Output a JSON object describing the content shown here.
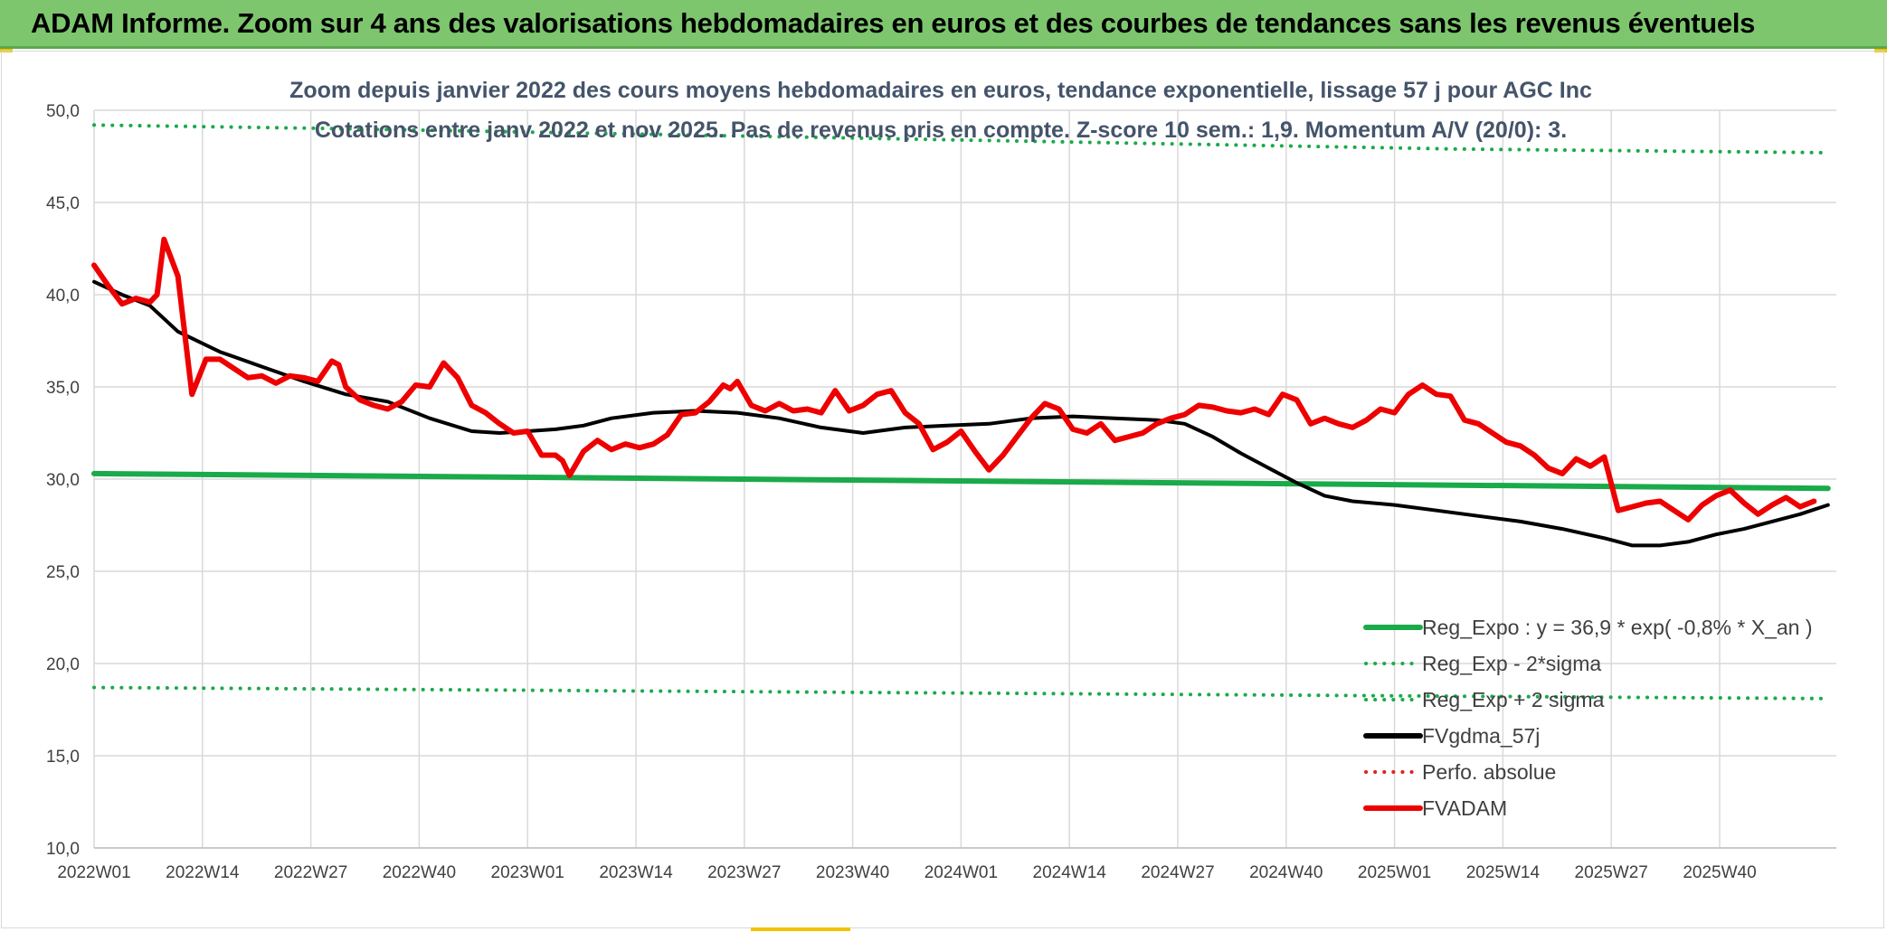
{
  "header": {
    "title": "ADAM Informe. Zoom sur 4 ans des valorisations hebdomadaires en euros et des courbes de tendances sans les revenus éventuels"
  },
  "chart_data": {
    "type": "line",
    "title": "Zoom depuis janvier 2022 des cours moyens hebdomadaires en euros, tendance exponentielle, lissage 57 j pour AGC Inc",
    "subtitle": "Cotations entre janv 2022 et nov 2025. Pas de revenus pris en compte. Z-score 10 sem.: 1,9. Momentum A/V (20/0): 3.",
    "xlabel": "",
    "ylabel": "",
    "ylim": [
      10,
      50
    ],
    "yticks": [
      "10,0",
      "15,0",
      "20,0",
      "25,0",
      "30,0",
      "35,0",
      "40,0",
      "45,0",
      "50,0"
    ],
    "xticks": [
      "2022W01",
      "2022W14",
      "2022W27",
      "2022W40",
      "2023W01",
      "2023W14",
      "2023W27",
      "2023W40",
      "2024W01",
      "2024W14",
      "2024W27",
      "2024W40",
      "2025W01",
      "2025W14",
      "2025W27",
      "2025W40"
    ],
    "x_weeks_total": 209,
    "grid": true,
    "legend_position": "bottom-right",
    "series": [
      {
        "name": "Reg_Expo : y = 36,9 * exp( -0,8% *  X_an )",
        "color": "#1aaa4a",
        "style": "solid",
        "width": 6,
        "anchors": [
          [
            0,
            30.3
          ],
          [
            208,
            29.5
          ]
        ]
      },
      {
        "name": "Reg_Exp - 2*sigma",
        "color": "#1aaa4a",
        "style": "dotted",
        "width": 4,
        "anchors": [
          [
            0,
            18.7
          ],
          [
            208,
            18.1
          ]
        ]
      },
      {
        "name": "Reg_Exp + 2 sigma",
        "color": "#1aaa4a",
        "style": "dotted",
        "width": 4,
        "anchors": [
          [
            0,
            49.2
          ],
          [
            30,
            49.0
          ],
          [
            163,
            47.9
          ],
          [
            208,
            47.7
          ]
        ]
      },
      {
        "name": "FVgdma_57j",
        "color": "#000000",
        "style": "solid",
        "width": 4,
        "anchors": [
          [
            0,
            40.7
          ],
          [
            4,
            40.0
          ],
          [
            8,
            39.4
          ],
          [
            12,
            38.0
          ],
          [
            18,
            36.9
          ],
          [
            24,
            36.1
          ],
          [
            30,
            35.3
          ],
          [
            36,
            34.6
          ],
          [
            42,
            34.2
          ],
          [
            48,
            33.3
          ],
          [
            54,
            32.6
          ],
          [
            58,
            32.5
          ],
          [
            62,
            32.6
          ],
          [
            66,
            32.7
          ],
          [
            70,
            32.9
          ],
          [
            74,
            33.3
          ],
          [
            80,
            33.6
          ],
          [
            86,
            33.7
          ],
          [
            92,
            33.6
          ],
          [
            98,
            33.3
          ],
          [
            104,
            32.8
          ],
          [
            110,
            32.5
          ],
          [
            116,
            32.8
          ],
          [
            122,
            32.9
          ],
          [
            128,
            33.0
          ],
          [
            134,
            33.3
          ],
          [
            140,
            33.4
          ],
          [
            146,
            33.3
          ],
          [
            152,
            33.2
          ],
          [
            156,
            33.0
          ],
          [
            160,
            32.3
          ],
          [
            164,
            31.4
          ],
          [
            168,
            30.6
          ],
          [
            172,
            29.8
          ],
          [
            176,
            29.1
          ],
          [
            180,
            28.8
          ],
          [
            186,
            28.6
          ],
          [
            192,
            28.3
          ],
          [
            198,
            28.0
          ],
          [
            204,
            27.7
          ],
          [
            210,
            27.3
          ],
          [
            216,
            26.8
          ],
          [
            220,
            26.4
          ],
          [
            224,
            26.4
          ],
          [
            228,
            26.6
          ],
          [
            232,
            27.0
          ],
          [
            236,
            27.3
          ],
          [
            240,
            27.7
          ],
          [
            244,
            28.1
          ],
          [
            248,
            28.6
          ]
        ]
      },
      {
        "name": "Perfo. absolue",
        "color": "#e02020",
        "style": "dotted",
        "width": 4,
        "anchors": []
      },
      {
        "name": "FVADAM",
        "color": "#ee0000",
        "style": "solid",
        "width": 6,
        "anchors": [
          [
            0,
            41.6
          ],
          [
            2,
            40.5
          ],
          [
            4,
            39.5
          ],
          [
            6,
            39.8
          ],
          [
            8,
            39.6
          ],
          [
            9,
            40.0
          ],
          [
            10,
            43.0
          ],
          [
            12,
            41.0
          ],
          [
            14,
            34.6
          ],
          [
            16,
            36.5
          ],
          [
            18,
            36.5
          ],
          [
            20,
            36.0
          ],
          [
            22,
            35.5
          ],
          [
            24,
            35.6
          ],
          [
            26,
            35.2
          ],
          [
            28,
            35.6
          ],
          [
            30,
            35.5
          ],
          [
            32,
            35.3
          ],
          [
            34,
            36.4
          ],
          [
            35,
            36.2
          ],
          [
            36,
            35.0
          ],
          [
            38,
            34.3
          ],
          [
            40,
            34.0
          ],
          [
            42,
            33.8
          ],
          [
            44,
            34.2
          ],
          [
            46,
            35.1
          ],
          [
            48,
            35.0
          ],
          [
            50,
            36.3
          ],
          [
            52,
            35.5
          ],
          [
            54,
            34.0
          ],
          [
            56,
            33.6
          ],
          [
            58,
            33.0
          ],
          [
            60,
            32.5
          ],
          [
            62,
            32.6
          ],
          [
            64,
            31.3
          ],
          [
            66,
            31.3
          ],
          [
            67,
            31.0
          ],
          [
            68,
            30.2
          ],
          [
            70,
            31.5
          ],
          [
            72,
            32.1
          ],
          [
            74,
            31.6
          ],
          [
            76,
            31.9
          ],
          [
            78,
            31.7
          ],
          [
            80,
            31.9
          ],
          [
            82,
            32.4
          ],
          [
            84,
            33.5
          ],
          [
            86,
            33.6
          ],
          [
            88,
            34.2
          ],
          [
            90,
            35.1
          ],
          [
            91,
            34.9
          ],
          [
            92,
            35.3
          ],
          [
            94,
            34.0
          ],
          [
            96,
            33.7
          ],
          [
            98,
            34.1
          ],
          [
            100,
            33.7
          ],
          [
            102,
            33.8
          ],
          [
            104,
            33.6
          ],
          [
            106,
            34.8
          ],
          [
            108,
            33.7
          ],
          [
            110,
            34.0
          ],
          [
            112,
            34.6
          ],
          [
            114,
            34.8
          ],
          [
            116,
            33.6
          ],
          [
            118,
            33.0
          ],
          [
            120,
            31.6
          ],
          [
            122,
            32.0
          ],
          [
            124,
            32.6
          ],
          [
            126,
            31.5
          ],
          [
            128,
            30.5
          ],
          [
            130,
            31.3
          ],
          [
            132,
            32.3
          ],
          [
            134,
            33.3
          ],
          [
            136,
            34.1
          ],
          [
            138,
            33.8
          ],
          [
            140,
            32.7
          ],
          [
            142,
            32.5
          ],
          [
            144,
            33.0
          ],
          [
            146,
            32.1
          ],
          [
            148,
            32.3
          ],
          [
            150,
            32.5
          ],
          [
            152,
            33.0
          ],
          [
            154,
            33.3
          ],
          [
            156,
            33.5
          ],
          [
            158,
            34.0
          ],
          [
            160,
            33.9
          ],
          [
            162,
            33.7
          ],
          [
            164,
            33.6
          ],
          [
            166,
            33.8
          ],
          [
            168,
            33.5
          ],
          [
            170,
            34.6
          ],
          [
            172,
            34.3
          ],
          [
            174,
            33.0
          ],
          [
            176,
            33.3
          ],
          [
            178,
            33.0
          ],
          [
            180,
            32.8
          ],
          [
            182,
            33.2
          ],
          [
            184,
            33.8
          ],
          [
            186,
            33.6
          ],
          [
            188,
            34.6
          ],
          [
            190,
            35.1
          ],
          [
            192,
            34.6
          ],
          [
            194,
            34.5
          ],
          [
            196,
            33.2
          ],
          [
            198,
            33.0
          ],
          [
            200,
            32.5
          ],
          [
            202,
            32.0
          ],
          [
            204,
            31.8
          ],
          [
            206,
            31.3
          ],
          [
            208,
            30.6
          ],
          [
            210,
            30.3
          ],
          [
            212,
            31.1
          ],
          [
            214,
            30.7
          ],
          [
            216,
            31.2
          ],
          [
            218,
            28.3
          ],
          [
            220,
            28.5
          ],
          [
            222,
            28.7
          ],
          [
            224,
            28.8
          ],
          [
            226,
            28.3
          ],
          [
            228,
            27.8
          ],
          [
            230,
            28.6
          ],
          [
            232,
            29.1
          ],
          [
            234,
            29.4
          ],
          [
            236,
            28.7
          ],
          [
            238,
            28.1
          ],
          [
            240,
            28.6
          ],
          [
            242,
            29.0
          ],
          [
            244,
            28.5
          ],
          [
            246,
            28.8
          ]
        ]
      }
    ]
  },
  "legend": [
    {
      "label": "Reg_Expo : y = 36,9 * exp( -0,8% *  X_an )",
      "color": "#1aaa4a",
      "style": "solid"
    },
    {
      "label": "Reg_Exp - 2*sigma",
      "color": "#1aaa4a",
      "style": "dotted"
    },
    {
      "label": "Reg_Exp + 2 sigma",
      "color": "#1aaa4a",
      "style": "dotted"
    },
    {
      "label": "FVgdma_57j",
      "color": "#000000",
      "style": "solid"
    },
    {
      "label": "Perfo. absolue",
      "color": "#e02020",
      "style": "dotted"
    },
    {
      "label": "FVADAM",
      "color": "#ee0000",
      "style": "solid"
    }
  ]
}
